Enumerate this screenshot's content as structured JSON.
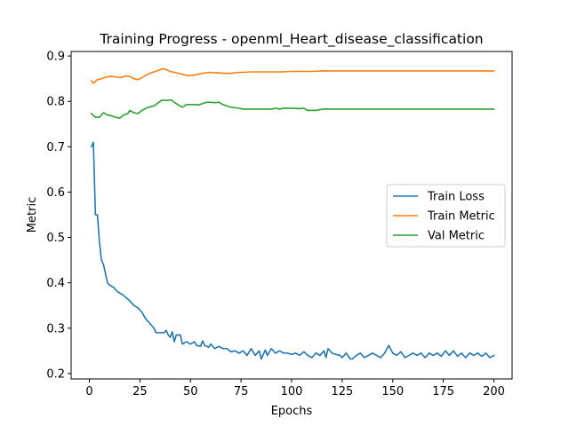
{
  "chart_data": {
    "type": "line",
    "title": "Training Progress - openml_Heart_disease_classification",
    "xlabel": "Epochs",
    "ylabel": "Metric",
    "xlim": [
      -9,
      209
    ],
    "ylim": [
      0.188,
      0.91
    ],
    "xticks": [
      0,
      25,
      50,
      75,
      100,
      125,
      150,
      175,
      200
    ],
    "yticks": [
      0.2,
      0.3,
      0.4,
      0.5,
      0.6,
      0.7,
      0.8,
      0.9
    ],
    "grid": false,
    "legend_position": "center-right",
    "series": [
      {
        "name": "Train Loss",
        "color": "#1f77b4",
        "points": [
          [
            1,
            0.7
          ],
          [
            2,
            0.71
          ],
          [
            3,
            0.55
          ],
          [
            4,
            0.55
          ],
          [
            5,
            0.49
          ],
          [
            6,
            0.45
          ],
          [
            7,
            0.44
          ],
          [
            8,
            0.42
          ],
          [
            9,
            0.4
          ],
          [
            10,
            0.395
          ],
          [
            12,
            0.39
          ],
          [
            14,
            0.38
          ],
          [
            16,
            0.375
          ],
          [
            18,
            0.368
          ],
          [
            20,
            0.36
          ],
          [
            22,
            0.35
          ],
          [
            24,
            0.345
          ],
          [
            26,
            0.335
          ],
          [
            28,
            0.32
          ],
          [
            30,
            0.31
          ],
          [
            32,
            0.3
          ],
          [
            33,
            0.29
          ],
          [
            35,
            0.29
          ],
          [
            37,
            0.29
          ],
          [
            38,
            0.295
          ],
          [
            39,
            0.285
          ],
          [
            40,
            0.28
          ],
          [
            41,
            0.292
          ],
          [
            42,
            0.27
          ],
          [
            43,
            0.285
          ],
          [
            45,
            0.285
          ],
          [
            46,
            0.265
          ],
          [
            48,
            0.27
          ],
          [
            50,
            0.265
          ],
          [
            52,
            0.27
          ],
          [
            53,
            0.262
          ],
          [
            55,
            0.26
          ],
          [
            56,
            0.272
          ],
          [
            57,
            0.262
          ],
          [
            59,
            0.258
          ],
          [
            60,
            0.265
          ],
          [
            62,
            0.255
          ],
          [
            64,
            0.26
          ],
          [
            66,
            0.255
          ],
          [
            68,
            0.255
          ],
          [
            70,
            0.248
          ],
          [
            72,
            0.25
          ],
          [
            74,
            0.245
          ],
          [
            76,
            0.25
          ],
          [
            78,
            0.24
          ],
          [
            80,
            0.255
          ],
          [
            82,
            0.24
          ],
          [
            84,
            0.25
          ],
          [
            85,
            0.232
          ],
          [
            87,
            0.252
          ],
          [
            88,
            0.24
          ],
          [
            90,
            0.255
          ],
          [
            92,
            0.245
          ],
          [
            94,
            0.25
          ],
          [
            96,
            0.245
          ],
          [
            98,
            0.245
          ],
          [
            100,
            0.242
          ],
          [
            102,
            0.245
          ],
          [
            104,
            0.24
          ],
          [
            106,
            0.248
          ],
          [
            108,
            0.24
          ],
          [
            110,
            0.235
          ],
          [
            112,
            0.245
          ],
          [
            114,
            0.24
          ],
          [
            116,
            0.25
          ],
          [
            117,
            0.235
          ],
          [
            118,
            0.255
          ],
          [
            120,
            0.245
          ],
          [
            122,
            0.242
          ],
          [
            124,
            0.24
          ],
          [
            125,
            0.235
          ],
          [
            127,
            0.245
          ],
          [
            129,
            0.232
          ],
          [
            130,
            0.232
          ],
          [
            132,
            0.24
          ],
          [
            134,
            0.245
          ],
          [
            136,
            0.235
          ],
          [
            138,
            0.24
          ],
          [
            140,
            0.245
          ],
          [
            142,
            0.24
          ],
          [
            144,
            0.235
          ],
          [
            146,
            0.245
          ],
          [
            148,
            0.262
          ],
          [
            150,
            0.245
          ],
          [
            152,
            0.24
          ],
          [
            154,
            0.248
          ],
          [
            156,
            0.235
          ],
          [
            158,
            0.24
          ],
          [
            160,
            0.245
          ],
          [
            162,
            0.24
          ],
          [
            164,
            0.245
          ],
          [
            166,
            0.235
          ],
          [
            168,
            0.245
          ],
          [
            170,
            0.24
          ],
          [
            172,
            0.245
          ],
          [
            174,
            0.238
          ],
          [
            176,
            0.25
          ],
          [
            178,
            0.24
          ],
          [
            180,
            0.25
          ],
          [
            182,
            0.238
          ],
          [
            184,
            0.245
          ],
          [
            186,
            0.235
          ],
          [
            188,
            0.245
          ],
          [
            190,
            0.24
          ],
          [
            192,
            0.245
          ],
          [
            194,
            0.238
          ],
          [
            196,
            0.245
          ],
          [
            198,
            0.235
          ],
          [
            200,
            0.24
          ]
        ]
      },
      {
        "name": "Train Metric",
        "color": "#ff7f0e",
        "points": [
          [
            1,
            0.845
          ],
          [
            2,
            0.84
          ],
          [
            4,
            0.848
          ],
          [
            6,
            0.85
          ],
          [
            8,
            0.853
          ],
          [
            10,
            0.855
          ],
          [
            12,
            0.855
          ],
          [
            14,
            0.853
          ],
          [
            16,
            0.853
          ],
          [
            18,
            0.856
          ],
          [
            20,
            0.855
          ],
          [
            22,
            0.85
          ],
          [
            24,
            0.848
          ],
          [
            26,
            0.852
          ],
          [
            28,
            0.858
          ],
          [
            30,
            0.862
          ],
          [
            32,
            0.865
          ],
          [
            34,
            0.868
          ],
          [
            36,
            0.872
          ],
          [
            38,
            0.87
          ],
          [
            40,
            0.866
          ],
          [
            42,
            0.864
          ],
          [
            44,
            0.862
          ],
          [
            46,
            0.86
          ],
          [
            48,
            0.857
          ],
          [
            50,
            0.857
          ],
          [
            52,
            0.858
          ],
          [
            54,
            0.86
          ],
          [
            56,
            0.862
          ],
          [
            58,
            0.863
          ],
          [
            60,
            0.864
          ],
          [
            62,
            0.863
          ],
          [
            64,
            0.863
          ],
          [
            66,
            0.862
          ],
          [
            68,
            0.862
          ],
          [
            70,
            0.862
          ],
          [
            72,
            0.863
          ],
          [
            74,
            0.864
          ],
          [
            76,
            0.864
          ],
          [
            80,
            0.865
          ],
          [
            85,
            0.865
          ],
          [
            90,
            0.865
          ],
          [
            95,
            0.865
          ],
          [
            100,
            0.866
          ],
          [
            110,
            0.866
          ],
          [
            115,
            0.867
          ],
          [
            120,
            0.867
          ],
          [
            140,
            0.867
          ],
          [
            160,
            0.867
          ],
          [
            180,
            0.867
          ],
          [
            200,
            0.867
          ]
        ]
      },
      {
        "name": "Val Metric",
        "color": "#2ca02c",
        "points": [
          [
            1,
            0.773
          ],
          [
            3,
            0.765
          ],
          [
            5,
            0.765
          ],
          [
            7,
            0.775
          ],
          [
            9,
            0.77
          ],
          [
            11,
            0.768
          ],
          [
            13,
            0.765
          ],
          [
            15,
            0.763
          ],
          [
            17,
            0.77
          ],
          [
            19,
            0.773
          ],
          [
            20,
            0.78
          ],
          [
            22,
            0.775
          ],
          [
            24,
            0.773
          ],
          [
            26,
            0.78
          ],
          [
            28,
            0.785
          ],
          [
            30,
            0.788
          ],
          [
            32,
            0.79
          ],
          [
            34,
            0.797
          ],
          [
            36,
            0.803
          ],
          [
            38,
            0.802
          ],
          [
            40,
            0.803
          ],
          [
            41,
            0.802
          ],
          [
            42,
            0.798
          ],
          [
            44,
            0.792
          ],
          [
            46,
            0.787
          ],
          [
            48,
            0.793
          ],
          [
            50,
            0.793
          ],
          [
            52,
            0.793
          ],
          [
            54,
            0.792
          ],
          [
            56,
            0.795
          ],
          [
            58,
            0.798
          ],
          [
            60,
            0.798
          ],
          [
            62,
            0.797
          ],
          [
            64,
            0.798
          ],
          [
            66,
            0.793
          ],
          [
            68,
            0.79
          ],
          [
            70,
            0.787
          ],
          [
            72,
            0.786
          ],
          [
            74,
            0.785
          ],
          [
            76,
            0.783
          ],
          [
            80,
            0.783
          ],
          [
            85,
            0.783
          ],
          [
            90,
            0.783
          ],
          [
            92,
            0.785
          ],
          [
            94,
            0.783
          ],
          [
            96,
            0.785
          ],
          [
            100,
            0.785
          ],
          [
            104,
            0.784
          ],
          [
            106,
            0.785
          ],
          [
            108,
            0.78
          ],
          [
            112,
            0.78
          ],
          [
            114,
            0.782
          ],
          [
            116,
            0.783
          ],
          [
            120,
            0.783
          ],
          [
            140,
            0.783
          ],
          [
            160,
            0.783
          ],
          [
            180,
            0.783
          ],
          [
            200,
            0.783
          ]
        ]
      }
    ]
  }
}
